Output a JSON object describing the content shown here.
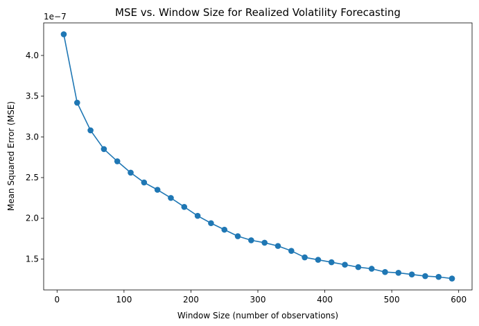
{
  "chart_data": {
    "type": "line",
    "title": "MSE vs. Window Size for Realized Volatility Forecasting",
    "xlabel": "Window Size (number of observations)",
    "ylabel": "Mean Squared Error (MSE)",
    "y_offset_label": "1e−7",
    "xlim": [
      -20,
      620
    ],
    "ylim": [
      1.12,
      4.4
    ],
    "xticks": [
      0,
      100,
      200,
      300,
      400,
      500,
      600
    ],
    "xtick_labels": [
      "0",
      "100",
      "200",
      "300",
      "400",
      "500",
      "600"
    ],
    "yticks": [
      1.5,
      2.0,
      2.5,
      3.0,
      3.5,
      4.0
    ],
    "ytick_labels": [
      "1.5",
      "2.0",
      "2.5",
      "3.0",
      "3.5",
      "4.0"
    ],
    "grid": false,
    "color": "#1f77b4",
    "marker": "circle",
    "x": [
      10,
      30,
      50,
      70,
      90,
      110,
      130,
      150,
      170,
      190,
      210,
      230,
      250,
      270,
      290,
      310,
      330,
      350,
      370,
      390,
      410,
      430,
      450,
      470,
      490,
      510,
      530,
      550,
      570,
      590
    ],
    "y": [
      4.26,
      3.42,
      3.08,
      2.85,
      2.7,
      2.56,
      2.44,
      2.35,
      2.25,
      2.14,
      2.03,
      1.94,
      1.86,
      1.78,
      1.73,
      1.7,
      1.66,
      1.6,
      1.52,
      1.49,
      1.46,
      1.43,
      1.4,
      1.38,
      1.34,
      1.33,
      1.31,
      1.29,
      1.28,
      1.26
    ]
  }
}
